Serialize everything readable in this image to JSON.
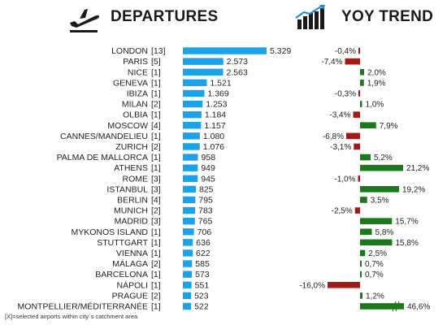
{
  "header": {
    "departures_title": "DEPARTURES",
    "yoy_title": "YOY TREND",
    "departures_icon": "airplane-takeoff-icon",
    "yoy_icon": "trend-chart-icon"
  },
  "colors": {
    "departures_bar": "#1aa3e8",
    "yoy_positive": "#1a7a1a",
    "yoy_negative": "#a11a1a"
  },
  "chart_data": [
    {
      "type": "bar",
      "title": "DEPARTURES",
      "orientation": "horizontal",
      "categories": [
        "LONDON",
        "PARIS",
        "NICE",
        "GENEVA",
        "IBIZA",
        "MILAN",
        "OLBIA",
        "MOSCOW",
        "CANNES/MANDELIEU",
        "ZURICH",
        "PALMA DE MALLORCA",
        "ATHENS",
        "ROME",
        "ISTANBUL",
        "BERLIN",
        "MUNICH",
        "MADRID",
        "MYKONOS ISLAND",
        "STUTTGART",
        "VIENNA",
        "MÁLAGA",
        "BARCELONA",
        "NÁPOLI",
        "PRAGUE",
        "MONTPELLIER/MÉDITERRANÉE"
      ],
      "airport_counts": [
        "[13]",
        "[5]",
        "[1]",
        "[1]",
        "[1]",
        "[2]",
        "[1]",
        "[4]",
        "[1]",
        "[2]",
        "[1]",
        "[1]",
        "[3]",
        "[3]",
        "[4]",
        "[2]",
        "[3]",
        "[1]",
        "[1]",
        "[1]",
        "[2]",
        "[1]",
        "[1]",
        "[2]",
        "[1]"
      ],
      "values": [
        5329,
        2573,
        2563,
        1521,
        1369,
        1253,
        1184,
        1157,
        1080,
        1076,
        958,
        949,
        945,
        825,
        795,
        783,
        765,
        706,
        636,
        622,
        585,
        573,
        551,
        523,
        522
      ],
      "value_labels": [
        "5.329",
        "2.573",
        "2.563",
        "1.521",
        "1.369",
        "1.253",
        "1.184",
        "1.157",
        "1.080",
        "1.076",
        "958",
        "949",
        "945",
        "825",
        "795",
        "783",
        "765",
        "706",
        "636",
        "622",
        "585",
        "573",
        "551",
        "523",
        "522"
      ]
    },
    {
      "type": "bar",
      "title": "YOY TREND",
      "orientation": "horizontal",
      "unit": "%",
      "categories": [
        "LONDON",
        "PARIS",
        "NICE",
        "GENEVA",
        "IBIZA",
        "MILAN",
        "OLBIA",
        "MOSCOW",
        "CANNES/MANDELIEU",
        "ZURICH",
        "PALMA DE MALLORCA",
        "ATHENS",
        "ROME",
        "ISTANBUL",
        "BERLIN",
        "MUNICH",
        "MADRID",
        "MYKONOS ISLAND",
        "STUTTGART",
        "VIENNA",
        "MÁLAGA",
        "BARCELONA",
        "NÁPOLI",
        "PRAGUE",
        "MONTPELLIER/MÉDITERRANÉE"
      ],
      "values": [
        -0.4,
        -7.4,
        2.0,
        1.9,
        -0.3,
        1.0,
        -3.4,
        7.9,
        -6.8,
        -3.1,
        5.2,
        21.2,
        -1.0,
        19.2,
        3.5,
        -2.5,
        15.7,
        5.8,
        15.8,
        2.5,
        0.7,
        0.7,
        -16.0,
        1.2,
        46.6
      ],
      "value_labels": [
        "-0,4%",
        "-7,4%",
        "2,0%",
        "1,9%",
        "-0,3%",
        "1,0%",
        "-3,4%",
        "7,9%",
        "-6,8%",
        "-3,1%",
        "5,2%",
        "21,2%",
        "-1,0%",
        "19,2%",
        "3,5%",
        "-2,5%",
        "15,7%",
        "5,8%",
        "15,8%",
        "2,5%",
        "0,7%",
        "0,7%",
        "-16,0%",
        "1,2%",
        "46,6%"
      ],
      "broken_axis_category": "MONTPELLIER/MÉDITERRANÉE"
    }
  ],
  "footnote": "[X]=selected airports within city´s catchment area"
}
